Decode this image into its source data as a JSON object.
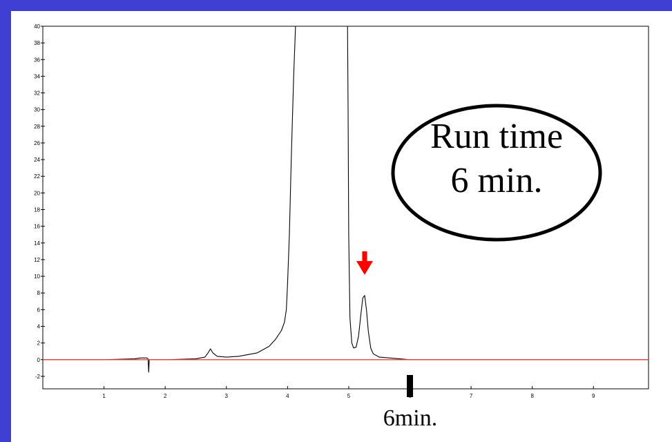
{
  "colors": {
    "frame": "#3f3fd4",
    "trace": "#000000",
    "baseline": "#e8433d",
    "arrow": "#ff0000",
    "background": "#ffffff"
  },
  "callout": {
    "line1": "Run time",
    "line2": "6 min."
  },
  "marker_label": "6min.",
  "chart_data": {
    "type": "line",
    "title": "",
    "xlabel": "",
    "ylabel": "",
    "xlim": [
      0,
      9.9
    ],
    "ylim": [
      -3.5,
      40
    ],
    "x_ticks": [
      1,
      2,
      3,
      4,
      5,
      6,
      7,
      8,
      9
    ],
    "y_ticks": [
      -2,
      0,
      2,
      4,
      6,
      8,
      10,
      12,
      14,
      16,
      18,
      20,
      22,
      24,
      26,
      28,
      30,
      32,
      34,
      36,
      38,
      40
    ],
    "grid": false,
    "series": [
      {
        "x": [
          0,
          1.0,
          1.5,
          1.6,
          1.7,
          1.72,
          1.73,
          1.74,
          1.75,
          1.8,
          2.0,
          2.5,
          2.65,
          2.7,
          2.74,
          2.78,
          2.85,
          3.0,
          3.2,
          3.5,
          3.7,
          3.8,
          3.9,
          3.95,
          3.98,
          4.0,
          4.03,
          4.06,
          4.1,
          4.13,
          4.98,
          4.99,
          5.0,
          5.02,
          5.05,
          5.08,
          5.12,
          5.16,
          5.2,
          5.23,
          5.26,
          5.29,
          5.32,
          5.36,
          5.4,
          5.5,
          6.0,
          7.0,
          8.0,
          9.0,
          9.9
        ],
        "y": [
          0,
          0,
          0.1,
          0.2,
          0.2,
          0.1,
          -1.5,
          0,
          0,
          0,
          0,
          0.1,
          0.3,
          0.8,
          1.3,
          0.8,
          0.4,
          0.3,
          0.4,
          0.8,
          1.6,
          2.4,
          3.5,
          4.5,
          6,
          9,
          15,
          24,
          34,
          40,
          40,
          30,
          15,
          5,
          2,
          1.4,
          1.5,
          2.8,
          5.5,
          7.4,
          7.7,
          6,
          3.4,
          1.4,
          0.7,
          0.3,
          0,
          0,
          0,
          0,
          0
        ]
      },
      {
        "x": [
          0,
          9.9
        ],
        "y": [
          0,
          0
        ]
      }
    ],
    "annotations": [
      {
        "type": "arrow",
        "x": 5.26,
        "y_from": 13,
        "y_to": 10.5
      },
      {
        "type": "axis-marker",
        "x": 6.0,
        "text": "6min."
      },
      {
        "type": "callout",
        "text": "Run time 6 min."
      }
    ]
  }
}
